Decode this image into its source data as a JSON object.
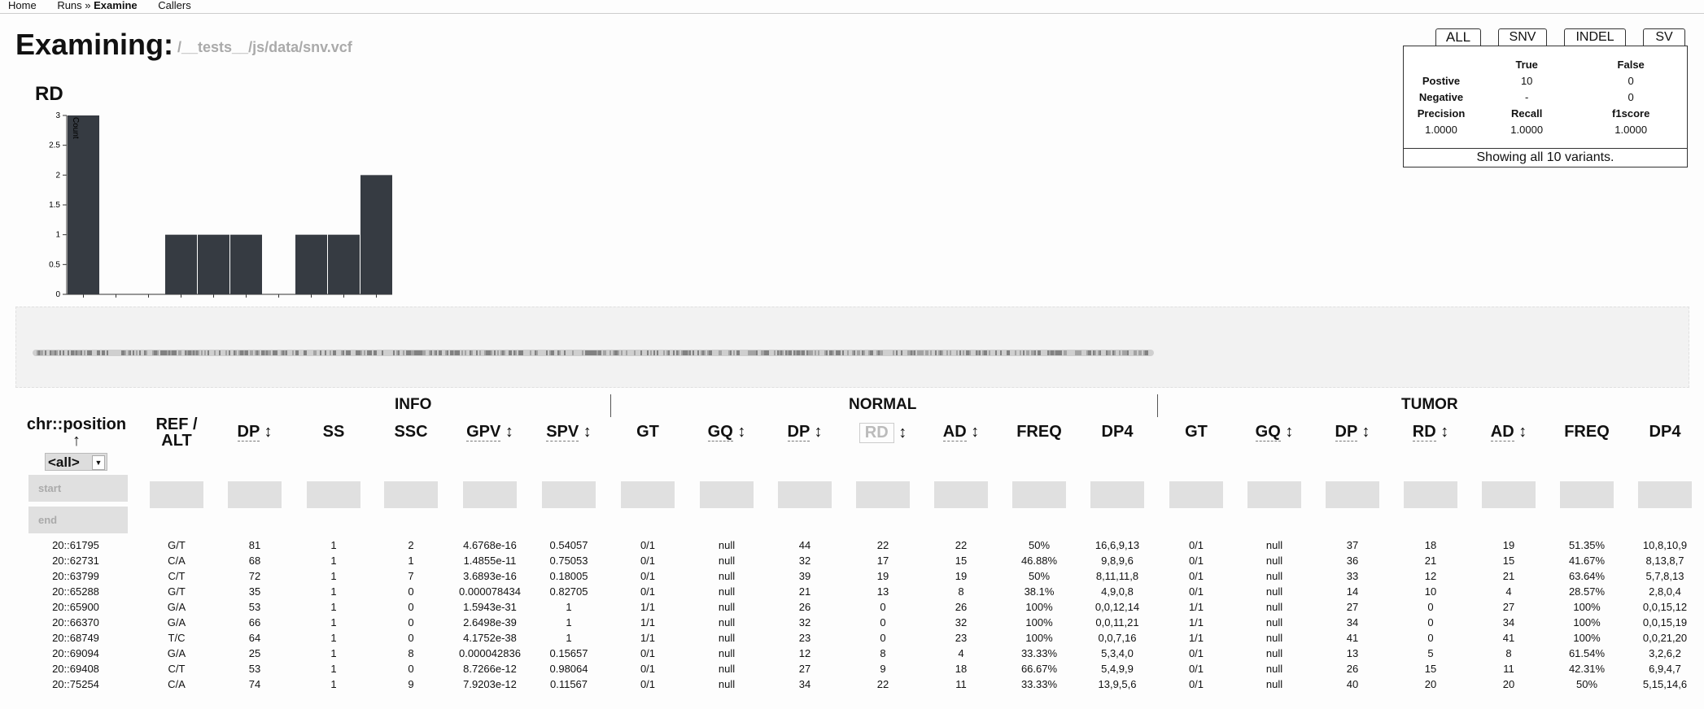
{
  "nav": {
    "home": "Home",
    "runs": "Runs",
    "sep": " » ",
    "examine": "Examine",
    "callers": "Callers"
  },
  "header": {
    "title": "Examining:",
    "file": "/__tests__/js/data/snv.vcf"
  },
  "chart_title": "RD",
  "chart_data": {
    "type": "bar",
    "title": "RD",
    "ylabel": "Count",
    "ylim": [
      0,
      3
    ],
    "yticks": [
      "0",
      "0.5",
      "1",
      "1.5",
      "2",
      "2.5",
      "3"
    ],
    "values": [
      3,
      0,
      0,
      1,
      1,
      1,
      0,
      1,
      1,
      2
    ],
    "colors": {
      "bar": "#363b42"
    }
  },
  "tabs": [
    "ALL",
    "SNV",
    "INDEL",
    "SV"
  ],
  "stats": {
    "col_true": "True",
    "col_false": "False",
    "pos_label": "Postive",
    "pos_true": "10",
    "pos_false": "0",
    "neg_label": "Negative",
    "neg_true": "-",
    "neg_false": "0",
    "prec_label": "Precision",
    "recall_label": "Recall",
    "f1_label": "f1score",
    "prec": "1.0000",
    "recall": "1.0000",
    "f1": "1.0000",
    "footer": "Showing all 10 variants."
  },
  "groups": {
    "info": "INFO",
    "normal": "NORMAL",
    "tumor": "TUMOR"
  },
  "headers": {
    "chrpos": "chr::position",
    "chrpos_arrow": "↑",
    "refalt": "REF / ALT",
    "info": [
      "DP",
      "SS",
      "SSC",
      "GPV",
      "SPV"
    ],
    "normal": [
      "GT",
      "GQ",
      "DP",
      "RD",
      "AD",
      "FREQ",
      "DP4"
    ],
    "tumor": [
      "GT",
      "GQ",
      "DP",
      "RD",
      "AD",
      "FREQ",
      "DP4"
    ],
    "sort_arrow": "↕"
  },
  "filters": {
    "chrom_select": "<all>",
    "start_placeholder": "start",
    "end_placeholder": "end"
  },
  "rows": [
    [
      "20::61795",
      "G/T",
      "81",
      "1",
      "2",
      "4.6768e-16",
      "0.54057",
      "0/1",
      "null",
      "44",
      "22",
      "22",
      "50%",
      "16,6,9,13",
      "0/1",
      "null",
      "37",
      "18",
      "19",
      "51.35%",
      "10,8,10,9"
    ],
    [
      "20::62731",
      "C/A",
      "68",
      "1",
      "1",
      "1.4855e-11",
      "0.75053",
      "0/1",
      "null",
      "32",
      "17",
      "15",
      "46.88%",
      "9,8,9,6",
      "0/1",
      "null",
      "36",
      "21",
      "15",
      "41.67%",
      "8,13,8,7"
    ],
    [
      "20::63799",
      "C/T",
      "72",
      "1",
      "7",
      "3.6893e-16",
      "0.18005",
      "0/1",
      "null",
      "39",
      "19",
      "19",
      "50%",
      "8,11,11,8",
      "0/1",
      "null",
      "33",
      "12",
      "21",
      "63.64%",
      "5,7,8,13"
    ],
    [
      "20::65288",
      "G/T",
      "35",
      "1",
      "0",
      "0.000078434",
      "0.82705",
      "0/1",
      "null",
      "21",
      "13",
      "8",
      "38.1%",
      "4,9,0,8",
      "0/1",
      "null",
      "14",
      "10",
      "4",
      "28.57%",
      "2,8,0,4"
    ],
    [
      "20::65900",
      "G/A",
      "53",
      "1",
      "0",
      "1.5943e-31",
      "1",
      "1/1",
      "null",
      "26",
      "0",
      "26",
      "100%",
      "0,0,12,14",
      "1/1",
      "null",
      "27",
      "0",
      "27",
      "100%",
      "0,0,15,12"
    ],
    [
      "20::66370",
      "G/A",
      "66",
      "1",
      "0",
      "2.6498e-39",
      "1",
      "1/1",
      "null",
      "32",
      "0",
      "32",
      "100%",
      "0,0,11,21",
      "1/1",
      "null",
      "34",
      "0",
      "34",
      "100%",
      "0,0,15,19"
    ],
    [
      "20::68749",
      "T/C",
      "64",
      "1",
      "0",
      "4.1752e-38",
      "1",
      "1/1",
      "null",
      "23",
      "0",
      "23",
      "100%",
      "0,0,7,16",
      "1/1",
      "null",
      "41",
      "0",
      "41",
      "100%",
      "0,0,21,20"
    ],
    [
      "20::69094",
      "G/A",
      "25",
      "1",
      "8",
      "0.000042836",
      "0.15657",
      "0/1",
      "null",
      "12",
      "8",
      "4",
      "33.33%",
      "5,3,4,0",
      "0/1",
      "null",
      "13",
      "5",
      "8",
      "61.54%",
      "3,2,6,2"
    ],
    [
      "20::69408",
      "C/T",
      "53",
      "1",
      "0",
      "8.7266e-12",
      "0.98064",
      "0/1",
      "null",
      "27",
      "9",
      "18",
      "66.67%",
      "5,4,9,9",
      "0/1",
      "null",
      "26",
      "15",
      "11",
      "42.31%",
      "6,9,4,7"
    ],
    [
      "20::75254",
      "C/A",
      "74",
      "1",
      "9",
      "7.9203e-12",
      "0.11567",
      "0/1",
      "null",
      "34",
      "22",
      "11",
      "33.33%",
      "13,9,5,6",
      "0/1",
      "null",
      "40",
      "20",
      "20",
      "50%",
      "5,15,14,6"
    ]
  ]
}
